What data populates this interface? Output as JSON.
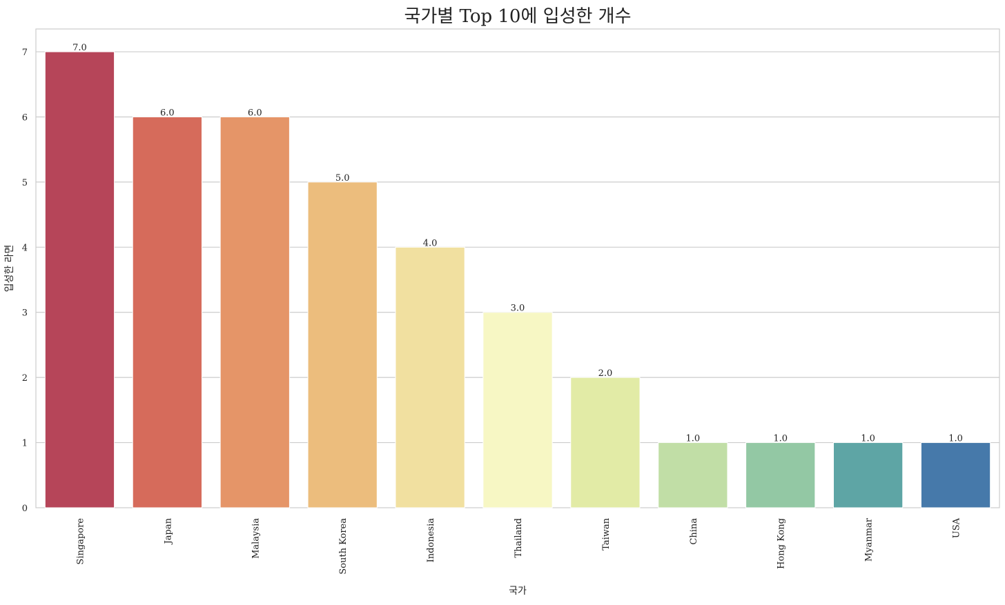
{
  "chart_data": {
    "type": "bar",
    "title": "국가별 Top 10에 입성한 개수",
    "xlabel": "국가",
    "ylabel": "입성한 라면",
    "categories": [
      "Singapore",
      "Japan",
      "Malaysia",
      "South Korea",
      "Indonesia",
      "Thailand",
      "Taiwan",
      "China",
      "Hong Kong",
      "Myanmar",
      "USA"
    ],
    "values": [
      7,
      6,
      6,
      5,
      4,
      3,
      2,
      1,
      1,
      1,
      1
    ],
    "data_labels": [
      "7.0",
      "6.0",
      "6.0",
      "5.0",
      "4.0",
      "3.0",
      "2.0",
      "1.0",
      "1.0",
      "1.0",
      "1.0"
    ],
    "colors": [
      "#b64559",
      "#d66b5b",
      "#e59568",
      "#ecbd7d",
      "#f1e0a0",
      "#f7f7c4",
      "#e2eba6",
      "#c1dea6",
      "#93c8a4",
      "#5ea5a5",
      "#4679aa"
    ],
    "ylim": [
      0,
      7.35
    ],
    "yticks": [
      0,
      1,
      2,
      3,
      4,
      5,
      6,
      7
    ],
    "grid": true,
    "legend": "none"
  }
}
